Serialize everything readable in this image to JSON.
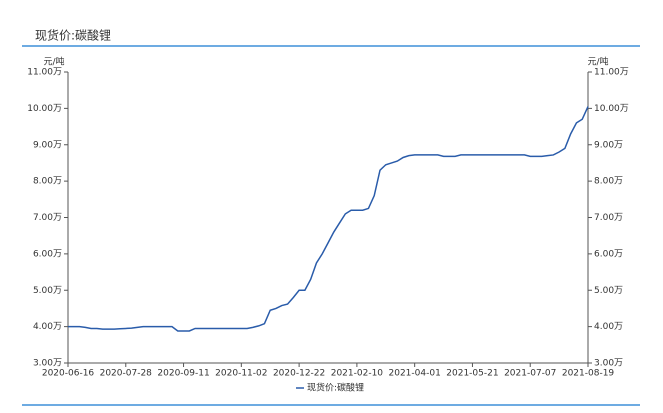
{
  "chart_data": {
    "type": "line",
    "title": "现货价:碳酸锂",
    "ylabel": "元/吨",
    "y2label": "元/吨",
    "categories": [
      "2020-06-16",
      null,
      null,
      null,
      null,
      null,
      null,
      null,
      null,
      null,
      "2020-07-28",
      null,
      null,
      null,
      null,
      null,
      null,
      null,
      null,
      null,
      "2020-09-11",
      null,
      null,
      null,
      null,
      null,
      null,
      null,
      null,
      null,
      "2020-11-02",
      null,
      null,
      null,
      null,
      null,
      null,
      null,
      null,
      null,
      "2020-12-22",
      null,
      null,
      null,
      null,
      null,
      null,
      null,
      null,
      null,
      "2021-02-10",
      null,
      null,
      null,
      null,
      null,
      null,
      null,
      null,
      null,
      "2021-04-01",
      null,
      null,
      null,
      null,
      null,
      null,
      null,
      null,
      null,
      "2021-05-21",
      null,
      null,
      null,
      null,
      null,
      null,
      null,
      null,
      null,
      "2021-07-07",
      null,
      null,
      null,
      null,
      null,
      null,
      null,
      null,
      null,
      "2021-08-19"
    ],
    "series": [
      {
        "name": "现货价:碳酸锂",
        "color": "#2a5caa",
        "values": [
          4.0,
          4.0,
          4.0,
          3.98,
          3.95,
          3.95,
          3.93,
          3.93,
          3.93,
          3.94,
          3.95,
          3.96,
          3.98,
          4.0,
          4.0,
          4.0,
          4.0,
          4.0,
          4.0,
          3.88,
          3.88,
          3.88,
          3.95,
          3.95,
          3.95,
          3.95,
          3.95,
          3.95,
          3.95,
          3.95,
          3.95,
          3.95,
          3.98,
          4.02,
          4.08,
          4.45,
          4.5,
          4.58,
          4.62,
          4.8,
          5.0,
          5.0,
          5.3,
          5.75,
          6.0,
          6.3,
          6.6,
          6.85,
          7.1,
          7.2,
          7.2,
          7.2,
          7.25,
          7.6,
          8.3,
          8.45,
          8.5,
          8.55,
          8.65,
          8.7,
          8.72,
          8.72,
          8.72,
          8.72,
          8.72,
          8.68,
          8.68,
          8.68,
          8.72,
          8.72,
          8.72,
          8.72,
          8.72,
          8.72,
          8.72,
          8.72,
          8.72,
          8.72,
          8.72,
          8.72,
          8.68,
          8.68,
          8.68,
          8.7,
          8.72,
          8.8,
          8.9,
          9.3,
          9.6,
          9.7,
          10.05
        ]
      }
    ],
    "ylim": [
      3,
      11
    ],
    "yticks": [
      {
        "value": 3,
        "label": "3.00万"
      },
      {
        "value": 4,
        "label": "4.00万"
      },
      {
        "value": 5,
        "label": "5.00万"
      },
      {
        "value": 6,
        "label": "6.00万"
      },
      {
        "value": 7,
        "label": "7.00万"
      },
      {
        "value": 8,
        "label": "8.00万"
      },
      {
        "value": 9,
        "label": "9.00万"
      },
      {
        "value": 10,
        "label": "10.00万"
      },
      {
        "value": 11,
        "label": "11.00万"
      }
    ],
    "y2lim": [
      3,
      11
    ],
    "y2ticks": [
      {
        "value": 3,
        "label": "3.00万"
      },
      {
        "value": 4,
        "label": "4.00万"
      },
      {
        "value": 5,
        "label": "5.00万"
      },
      {
        "value": 6,
        "label": "6.00万"
      },
      {
        "value": 7,
        "label": "7.00万"
      },
      {
        "value": 8,
        "label": "8.00万"
      },
      {
        "value": 9,
        "label": "9.00万"
      },
      {
        "value": 10,
        "label": "10.00万"
      },
      {
        "value": 11,
        "label": "11.00万"
      }
    ]
  }
}
